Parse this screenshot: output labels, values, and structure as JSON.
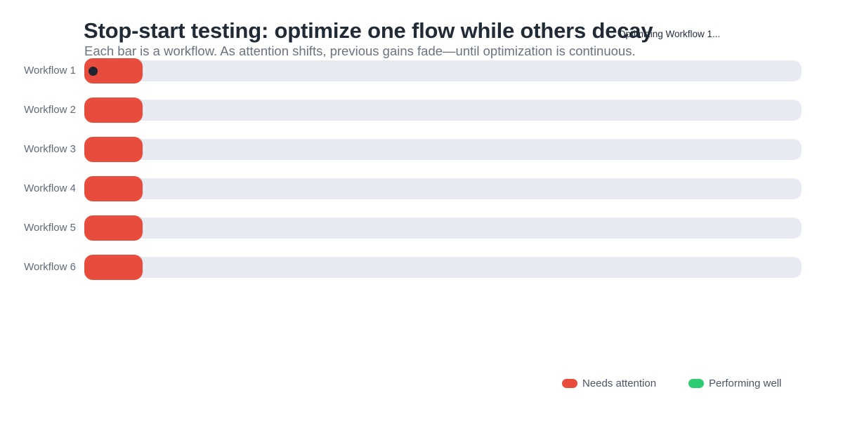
{
  "chart": {
    "title": "Stop-start testing: optimize one flow while others decay",
    "subtitle": "Each bar is a workflow. As attention shifts, previous gains fade—until optimization is continuous.",
    "status": "Optimizing Workflow 1..."
  },
  "chart_data": {
    "type": "bar",
    "orientation": "horizontal",
    "title": "Stop-start testing: optimize one flow while others decay",
    "subtitle": "Each bar is a workflow. As attention shifts, previous gains fade—until optimization is continuous.",
    "status_annotation": "Optimizing Workflow 1...",
    "categories": [
      "Workflow 1",
      "Workflow 2",
      "Workflow 3",
      "Workflow 4",
      "Workflow 5",
      "Workflow 6"
    ],
    "values": [
      8.1,
      8.1,
      8.1,
      8.1,
      8.1,
      8.1
    ],
    "value_unit": "percent_of_track",
    "xlim": [
      0,
      100
    ],
    "grid": false,
    "active_index": 0,
    "active_marker": "dot",
    "legend_position": "bottom-right",
    "legend": [
      {
        "label": "Needs attention",
        "color": "#e74c3c"
      },
      {
        "label": "Performing well",
        "color": "#2ecc71"
      }
    ],
    "colors": {
      "bar_fill": "#e74c3c",
      "bar_track": "#e7eaf0",
      "active_marker": "#1f2430",
      "title_text": "#212b36",
      "subtitle_text": "#6b7280",
      "label_text": "#5f6b7b",
      "background": "#ffffff"
    }
  }
}
